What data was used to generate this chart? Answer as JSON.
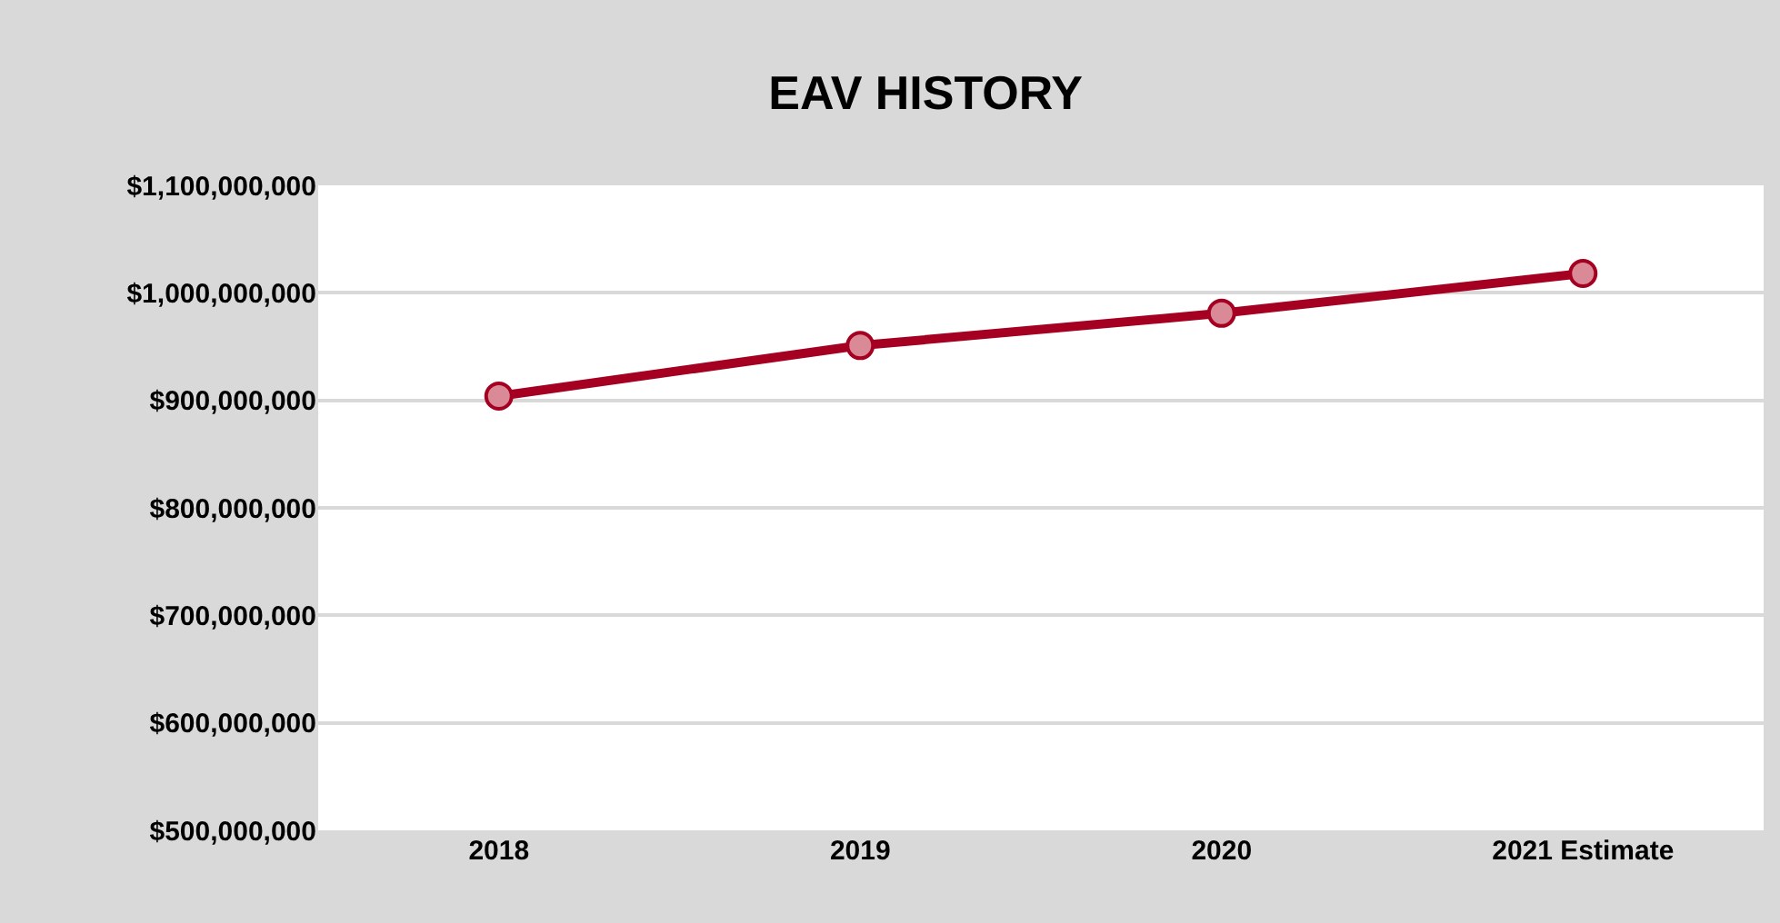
{
  "chart_data": {
    "type": "line",
    "title": "EAV HISTORY",
    "categories": [
      "2018",
      "2019",
      "2020",
      "2021 Estimate"
    ],
    "series": [
      {
        "color": "#a50021",
        "values": [
          904000000,
          951000000,
          981000000,
          1018000000
        ]
      }
    ],
    "ylim": [
      500000000,
      1100000000
    ],
    "yticks": [
      {
        "value": 500000000,
        "label": "$500,000,000"
      },
      {
        "value": 600000000,
        "label": "$600,000,000"
      },
      {
        "value": 700000000,
        "label": "$700,000,000"
      },
      {
        "value": 800000000,
        "label": "$800,000,000"
      },
      {
        "value": 900000000,
        "label": "$900,000,000"
      },
      {
        "value": 1000000000,
        "label": "$1,000,000,000"
      },
      {
        "value": 1100000000,
        "label": "$1,100,000,000"
      }
    ],
    "grid": "y",
    "marker": "circle",
    "line_style": "solid"
  }
}
